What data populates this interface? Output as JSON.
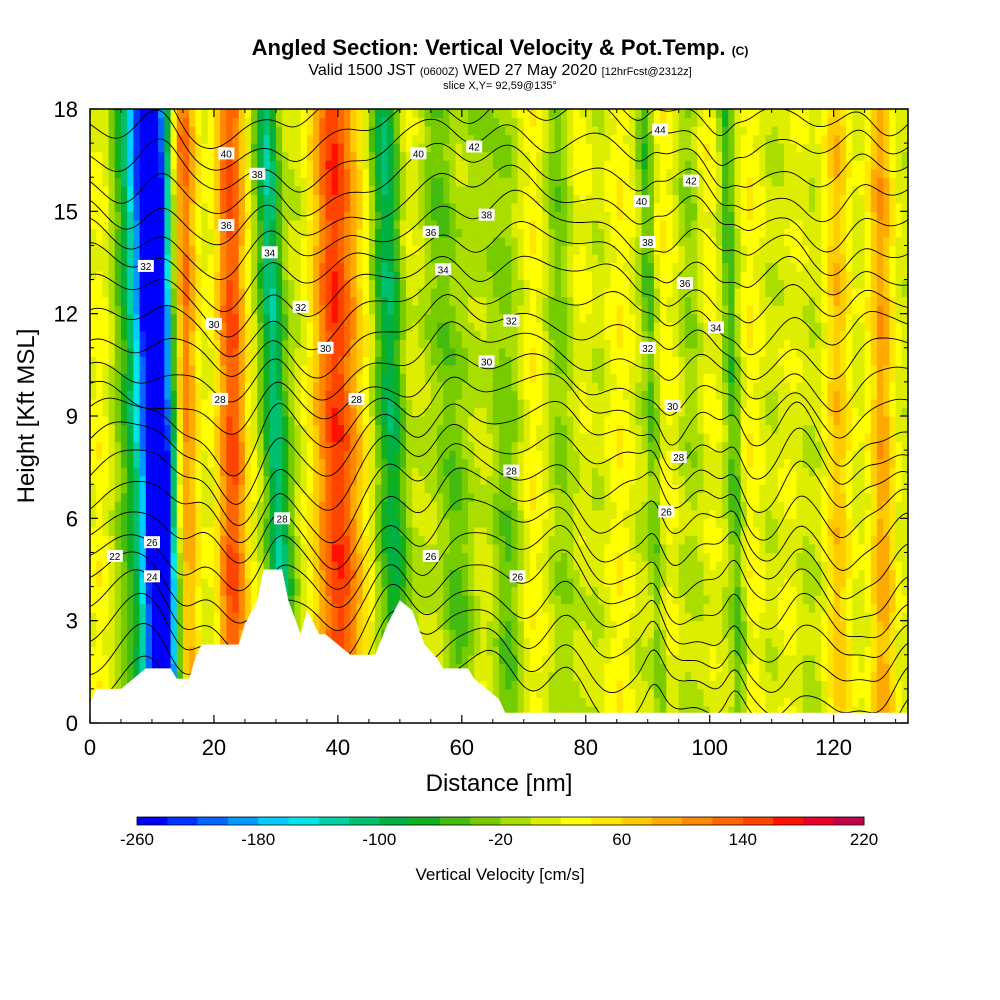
{
  "title": {
    "main": "Angled Section: Vertical Velocity & Pot.Temp.",
    "main_suffix": "(C)",
    "valid_prefix": "Valid 1500 JST",
    "valid_utc": "(0600Z)",
    "valid_date": "WED 27 May 2020",
    "forecast": "[12hrFcst@2312z]",
    "slice": "slice X,Y= 92,59@135°"
  },
  "chart_data": {
    "type": "heatmap",
    "xlabel": "Distance [nm]",
    "ylabel": "Height [Kft MSL]",
    "xlim": [
      0,
      132
    ],
    "ylim": [
      0,
      18
    ],
    "x_ticks": [
      0,
      20,
      40,
      60,
      80,
      100,
      120
    ],
    "y_ticks": [
      0,
      3,
      6,
      9,
      12,
      15,
      18
    ],
    "colorbar": {
      "title": "Vertical Velocity [cm/s]",
      "min": -260,
      "max": 220,
      "step": 20,
      "tick_labels": [
        "-260",
        "-180",
        "-100",
        "-20",
        "60",
        "140",
        "220"
      ],
      "colors": [
        "#0000ff",
        "#0033ff",
        "#0066ff",
        "#0099ff",
        "#00ccff",
        "#00e6e6",
        "#00d2a8",
        "#00c070",
        "#00b040",
        "#10b020",
        "#44bb11",
        "#77cc00",
        "#aadd00",
        "#ddee00",
        "#ffff00",
        "#ffe600",
        "#ffcc00",
        "#ffaa00",
        "#ff8800",
        "#ff6600",
        "#ff4400",
        "#ff1100",
        "#e8002a",
        "#c0004a",
        "#900070",
        "#5e0090"
      ]
    },
    "terrain": [
      [
        0,
        0.6
      ],
      [
        1,
        1.0
      ],
      [
        5,
        1.0
      ],
      [
        9,
        1.6
      ],
      [
        13,
        1.6
      ],
      [
        14,
        1.3
      ],
      [
        16,
        1.3
      ],
      [
        17,
        1.9
      ],
      [
        18,
        2.3
      ],
      [
        24,
        2.3
      ],
      [
        25,
        2.9
      ],
      [
        27,
        3.6
      ],
      [
        28,
        4.5
      ],
      [
        31,
        4.5
      ],
      [
        32,
        3.6
      ],
      [
        34,
        2.6
      ],
      [
        35,
        3.3
      ],
      [
        37,
        2.6
      ],
      [
        38,
        2.6
      ],
      [
        40,
        2.3
      ],
      [
        42,
        2.0
      ],
      [
        46,
        2.0
      ],
      [
        48,
        2.9
      ],
      [
        50,
        3.6
      ],
      [
        52,
        3.3
      ],
      [
        54,
        2.3
      ],
      [
        56,
        1.9
      ],
      [
        57,
        1.6
      ],
      [
        61,
        1.6
      ],
      [
        62,
        1.3
      ],
      [
        64,
        1.0
      ],
      [
        66,
        0.7
      ],
      [
        67,
        0.3
      ],
      [
        132,
        0.3
      ]
    ],
    "velocity_bands": [
      {
        "x": 11,
        "w": 3.2,
        "v": -230
      },
      {
        "x": 10,
        "w": 4.5,
        "v": -120
      },
      {
        "x": 15,
        "w": 2.2,
        "v": 130
      },
      {
        "x": 23,
        "w": 2.5,
        "v": 110
      },
      {
        "x": 30,
        "w": 2.0,
        "v": -150
      },
      {
        "x": 40,
        "w": 3.0,
        "v": 150
      },
      {
        "x": 49,
        "w": 2.5,
        "v": -110
      },
      {
        "x": 58,
        "w": 2.5,
        "v": -70
      },
      {
        "x": 66,
        "w": 3.0,
        "v": -50
      },
      {
        "x": 77,
        "w": 2.5,
        "v": -40
      },
      {
        "x": 91,
        "w": 1.2,
        "v": -60
      },
      {
        "x": 98,
        "w": 2.0,
        "v": -30
      },
      {
        "x": 104,
        "w": 1.2,
        "v": -60
      },
      {
        "x": 114,
        "w": 2.0,
        "v": -20
      },
      {
        "x": 121,
        "w": 2.0,
        "v": 40
      },
      {
        "x": 128,
        "w": 2.0,
        "v": 60
      }
    ],
    "isotherms": [
      {
        "value": 22,
        "label": "22",
        "lx": 4,
        "ly": 5.1
      },
      {
        "value": 24,
        "label": "24",
        "lx": 10,
        "ly": 4.3
      },
      {
        "value": 26,
        "label": "26",
        "lx": 69,
        "ly": 4.3
      },
      {
        "value": 28,
        "label": "28",
        "lx": 28,
        "ly": 6.0
      },
      {
        "value": 30,
        "label": "30",
        "lx": 98,
        "ly": 9.1
      },
      {
        "value": 32,
        "label": "32",
        "lx": 93,
        "ly": 11.0
      },
      {
        "value": 34,
        "label": "34",
        "lx": 100,
        "ly": 11.6
      },
      {
        "value": 36,
        "label": "36",
        "lx": 97,
        "ly": 13.2
      },
      {
        "value": 38,
        "label": "38",
        "lx": 92,
        "ly": 14.3
      },
      {
        "value": 40,
        "label": "40",
        "lx": 90,
        "ly": 15.2
      },
      {
        "value": 42,
        "label": "42",
        "lx": 99,
        "ly": 15.9
      },
      {
        "value": 44,
        "label": "44",
        "lx": 93,
        "ly": 17.4
      }
    ],
    "contour_labels": [
      {
        "text": "40",
        "x": 22,
        "y": 16.7
      },
      {
        "text": "38",
        "x": 27,
        "y": 16.1
      },
      {
        "text": "36",
        "x": 22,
        "y": 14.6
      },
      {
        "text": "34",
        "x": 29,
        "y": 13.8
      },
      {
        "text": "32",
        "x": 9,
        "y": 13.4
      },
      {
        "text": "32",
        "x": 34,
        "y": 12.2
      },
      {
        "text": "30",
        "x": 20,
        "y": 11.7
      },
      {
        "text": "30",
        "x": 38,
        "y": 11.0
      },
      {
        "text": "28",
        "x": 21,
        "y": 9.5
      },
      {
        "text": "28",
        "x": 43,
        "y": 9.5
      },
      {
        "text": "26",
        "x": 10,
        "y": 5.3
      },
      {
        "text": "24",
        "x": 10,
        "y": 4.3
      },
      {
        "text": "22",
        "x": 4,
        "y": 4.9
      },
      {
        "text": "28",
        "x": 31,
        "y": 6.0
      },
      {
        "text": "26",
        "x": 55,
        "y": 4.9
      },
      {
        "text": "26",
        "x": 69,
        "y": 4.3
      },
      {
        "text": "40",
        "x": 53,
        "y": 16.7
      },
      {
        "text": "42",
        "x": 62,
        "y": 16.9
      },
      {
        "text": "38",
        "x": 64,
        "y": 14.9
      },
      {
        "text": "36",
        "x": 55,
        "y": 14.4
      },
      {
        "text": "34",
        "x": 57,
        "y": 13.3
      },
      {
        "text": "32",
        "x": 68,
        "y": 11.8
      },
      {
        "text": "30",
        "x": 64,
        "y": 10.6
      },
      {
        "text": "28",
        "x": 68,
        "y": 7.4
      },
      {
        "text": "26",
        "x": 93,
        "y": 6.2
      },
      {
        "text": "28",
        "x": 95,
        "y": 7.8
      },
      {
        "text": "30",
        "x": 94,
        "y": 9.3
      },
      {
        "text": "32",
        "x": 90,
        "y": 11.0
      },
      {
        "text": "34",
        "x": 101,
        "y": 11.6
      },
      {
        "text": "36",
        "x": 96,
        "y": 12.9
      },
      {
        "text": "38",
        "x": 90,
        "y": 14.1
      },
      {
        "text": "40",
        "x": 89,
        "y": 15.3
      },
      {
        "text": "42",
        "x": 97,
        "y": 15.9
      },
      {
        "text": "44",
        "x": 92,
        "y": 17.4
      }
    ]
  }
}
